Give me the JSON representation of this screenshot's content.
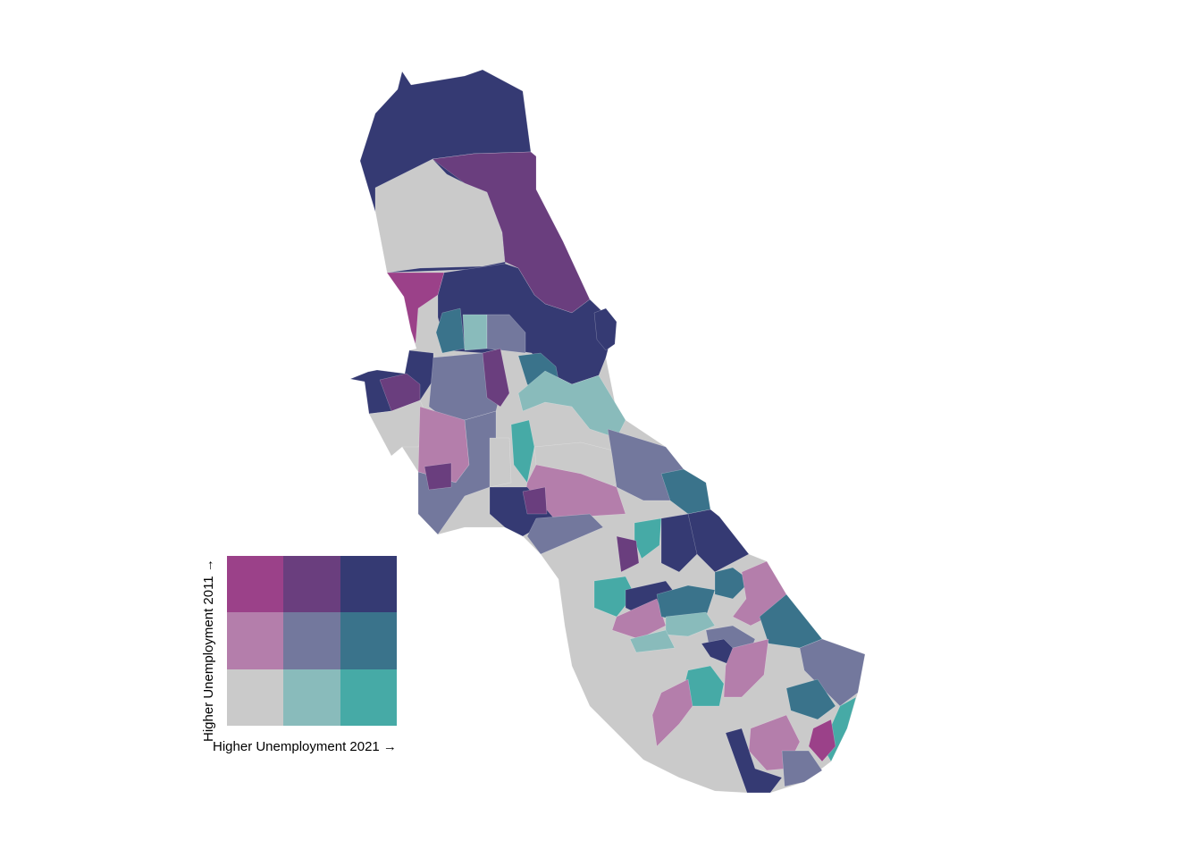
{
  "legend": {
    "x_label": "Higher Unemployment 2021 →",
    "y_label": "Higher Unemployment 2011 →",
    "grid": [
      [
        "#9b4189",
        "#6a3e7e",
        "#353a73"
      ],
      [
        "#b47eab",
        "#73789d",
        "#3a738b"
      ],
      [
        "#cacaca",
        "#89bbbb",
        "#46aaa6"
      ]
    ]
  },
  "palette": {
    "hi_lo": "#9b4189",
    "hi_mid": "#6a3e7e",
    "hi_hi": "#353a73",
    "mid_lo": "#b47eab",
    "mid_mid": "#73789d",
    "mid_hi": "#3a738b",
    "lo_lo": "#cacaca",
    "lo_mid": "#89bbbb",
    "lo_hi": "#46aaa6"
  }
}
